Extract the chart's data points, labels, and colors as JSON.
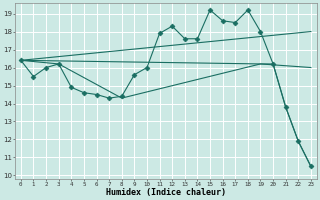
{
  "xlabel": "Humidex (Indice chaleur)",
  "xlim": [
    -0.5,
    23.5
  ],
  "ylim": [
    9.8,
    19.6
  ],
  "yticks": [
    10,
    11,
    12,
    13,
    14,
    15,
    16,
    17,
    18,
    19
  ],
  "xticks": [
    0,
    1,
    2,
    3,
    4,
    5,
    6,
    7,
    8,
    9,
    10,
    11,
    12,
    13,
    14,
    15,
    16,
    17,
    18,
    19,
    20,
    21,
    22,
    23
  ],
  "bg_color": "#cce9e4",
  "line_color": "#1a6e62",
  "grid_color": "#ffffff",
  "series": [
    {
      "x": [
        0,
        1,
        2,
        3,
        4,
        5,
        6,
        7,
        8,
        9,
        10,
        11,
        12,
        13,
        14,
        15,
        16,
        17,
        18,
        19,
        20,
        21,
        22,
        23
      ],
      "y": [
        16.4,
        15.5,
        16.0,
        16.2,
        14.9,
        14.6,
        14.5,
        14.3,
        14.4,
        15.6,
        16.0,
        17.9,
        18.3,
        17.6,
        17.6,
        19.2,
        18.6,
        18.5,
        19.2,
        18.0,
        16.2,
        13.8,
        11.9,
        10.5
      ],
      "marker": "D",
      "markersize": 2.5
    },
    {
      "x": [
        0,
        23
      ],
      "y": [
        16.4,
        18.0
      ],
      "marker": null,
      "markersize": 0
    },
    {
      "x": [
        0,
        19,
        23
      ],
      "y": [
        16.4,
        16.2,
        16.0
      ],
      "marker": null,
      "markersize": 0
    },
    {
      "x": [
        0,
        3,
        8,
        19,
        20,
        21,
        22,
        23
      ],
      "y": [
        16.4,
        16.2,
        14.3,
        16.2,
        16.2,
        13.8,
        11.9,
        10.5
      ],
      "marker": null,
      "markersize": 0
    }
  ]
}
